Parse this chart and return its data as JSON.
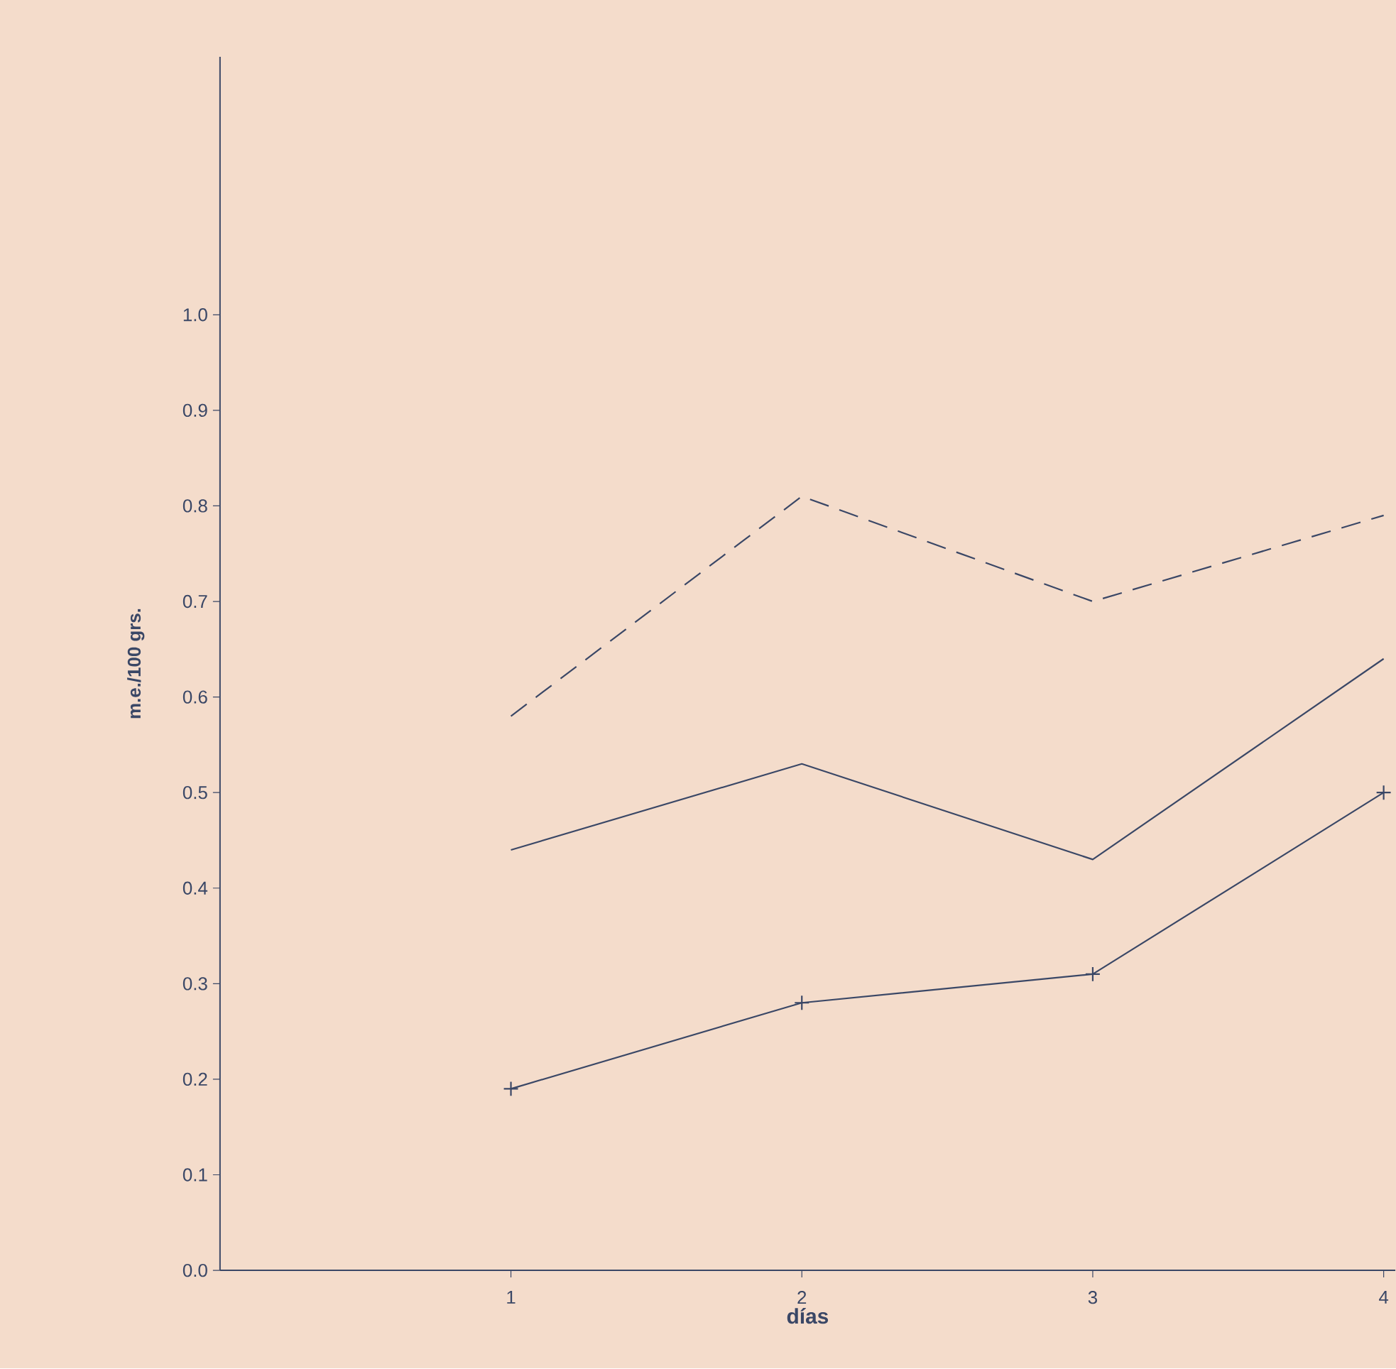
{
  "chart_data": {
    "type": "line",
    "xlabel": "días",
    "ylabel": "m.e./100 grs.",
    "x": [
      1,
      2,
      3,
      4
    ],
    "series": [
      {
        "color": "#3a4766",
        "line_style": "dashed",
        "marker": "none",
        "values": [
          0.58,
          0.81,
          0.7,
          0.79
        ]
      },
      {
        "color": "#3a4766",
        "line_style": "solid",
        "marker": "none",
        "values": [
          0.44,
          0.53,
          0.43,
          0.64
        ]
      },
      {
        "color": "#3a4766",
        "line_style": "solid",
        "marker": "cross",
        "values": [
          0.19,
          0.28,
          0.31,
          0.5
        ]
      }
    ],
    "xlim": [
      0,
      4.04
    ],
    "ylim": [
      0,
      1.27
    ],
    "xticks": [
      1,
      2,
      3,
      4
    ],
    "yticks": [
      {
        "value": 0,
        "label": "0.0"
      },
      {
        "value": 0.1,
        "label": "0.1"
      },
      {
        "value": 0.2,
        "label": "0.2"
      },
      {
        "value": 0.3,
        "label": "0.3"
      },
      {
        "value": 0.4,
        "label": "0.4"
      },
      {
        "value": 0.5,
        "label": "0.5"
      },
      {
        "value": 0.6,
        "label": "0.6"
      },
      {
        "value": 0.7,
        "label": "0.7"
      },
      {
        "value": 0.8,
        "label": "0.8"
      },
      {
        "value": 0.9,
        "label": "0.9"
      },
      {
        "value": 1,
        "label": "1.0"
      }
    ],
    "grid": false
  }
}
